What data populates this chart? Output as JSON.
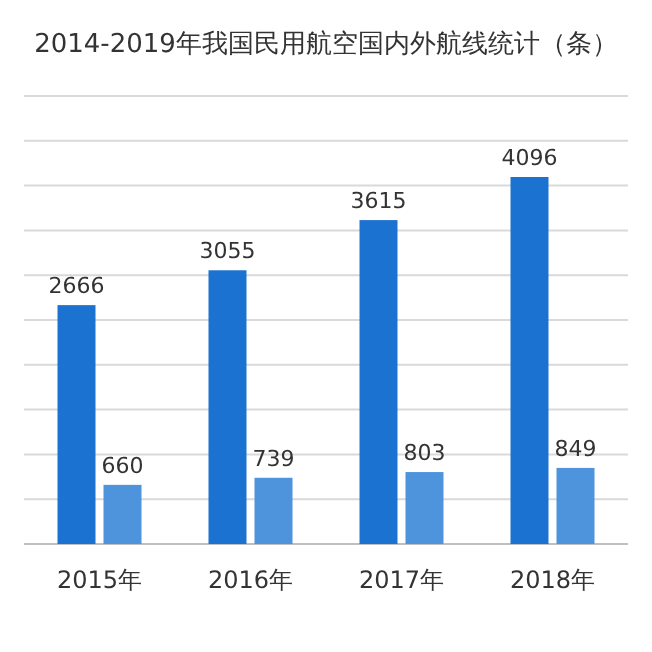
{
  "chart_data": {
    "type": "bar",
    "title": "2014-2019年我国民用航空国内外航线统计（条）",
    "categories": [
      "2015年",
      "2016年",
      "2017年",
      "2018年"
    ],
    "series": [
      {
        "color": "#1c72d0",
        "values": [
          2666,
          3055,
          3615,
          4096
        ]
      },
      {
        "color": "#4d94dd",
        "values": [
          660,
          739,
          803,
          849
        ]
      }
    ],
    "ylim": [
      0,
      5000
    ],
    "yticks": [
      0,
      500,
      1000,
      1500,
      2000,
      2500,
      3000,
      3500,
      4000,
      4500,
      5000
    ],
    "tick_labels": "x",
    "grid": "y",
    "data_labels": true
  }
}
